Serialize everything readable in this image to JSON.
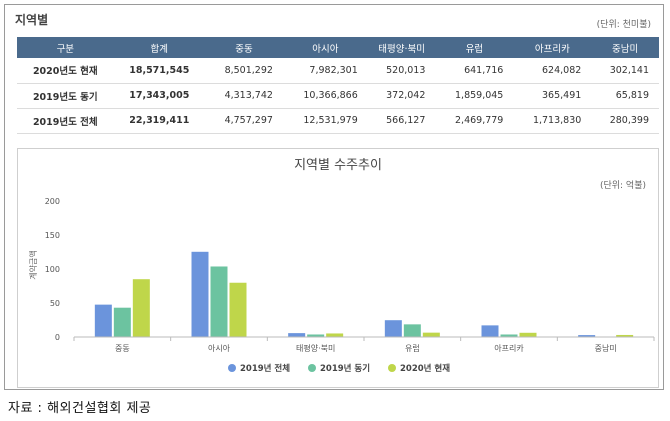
{
  "section_title": "지역별",
  "table_unit": "(단위: 천미불)",
  "table": {
    "headers": [
      "구분",
      "합계",
      "중동",
      "아시아",
      "태평양·북미",
      "유럽",
      "아프리카",
      "중남미"
    ],
    "rows": [
      [
        "2020년도 현재",
        "18,571,545",
        "8,501,292",
        "7,982,301",
        "520,013",
        "641,716",
        "624,082",
        "302,141"
      ],
      [
        "2019년도 동기",
        "17,343,005",
        "4,313,742",
        "10,366,866",
        "372,042",
        "1,859,045",
        "365,491",
        "65,819"
      ],
      [
        "2019년도 전체",
        "22,319,411",
        "4,757,297",
        "12,531,979",
        "566,127",
        "2,469,779",
        "1,713,830",
        "280,399"
      ]
    ]
  },
  "chart_data": {
    "type": "bar",
    "title": "지역별 수주추이",
    "unit": "(단위: 억불)",
    "ylabel": "계약금액",
    "xlabel": "",
    "categories": [
      "중동",
      "아시아",
      "태평양·북미",
      "유럽",
      "아프리카",
      "중남미"
    ],
    "series": [
      {
        "name": "2019년 전체",
        "color": "#6b94dc",
        "values": [
          47.6,
          125.3,
          5.7,
          24.7,
          17.1,
          2.8
        ]
      },
      {
        "name": "2019년 동기",
        "color": "#6cc3a0",
        "values": [
          43.1,
          103.7,
          3.7,
          18.6,
          3.7,
          0.7
        ]
      },
      {
        "name": "2020년 현재",
        "color": "#bfd64a",
        "values": [
          85.0,
          79.8,
          5.2,
          6.4,
          6.2,
          3.0
        ]
      }
    ],
    "ylim": [
      0,
      200
    ],
    "yticks": [
      0,
      50,
      100,
      150,
      200
    ],
    "grid": false,
    "legend_position": "bottom"
  },
  "caption": "자료 : 해외건설협회 제공"
}
